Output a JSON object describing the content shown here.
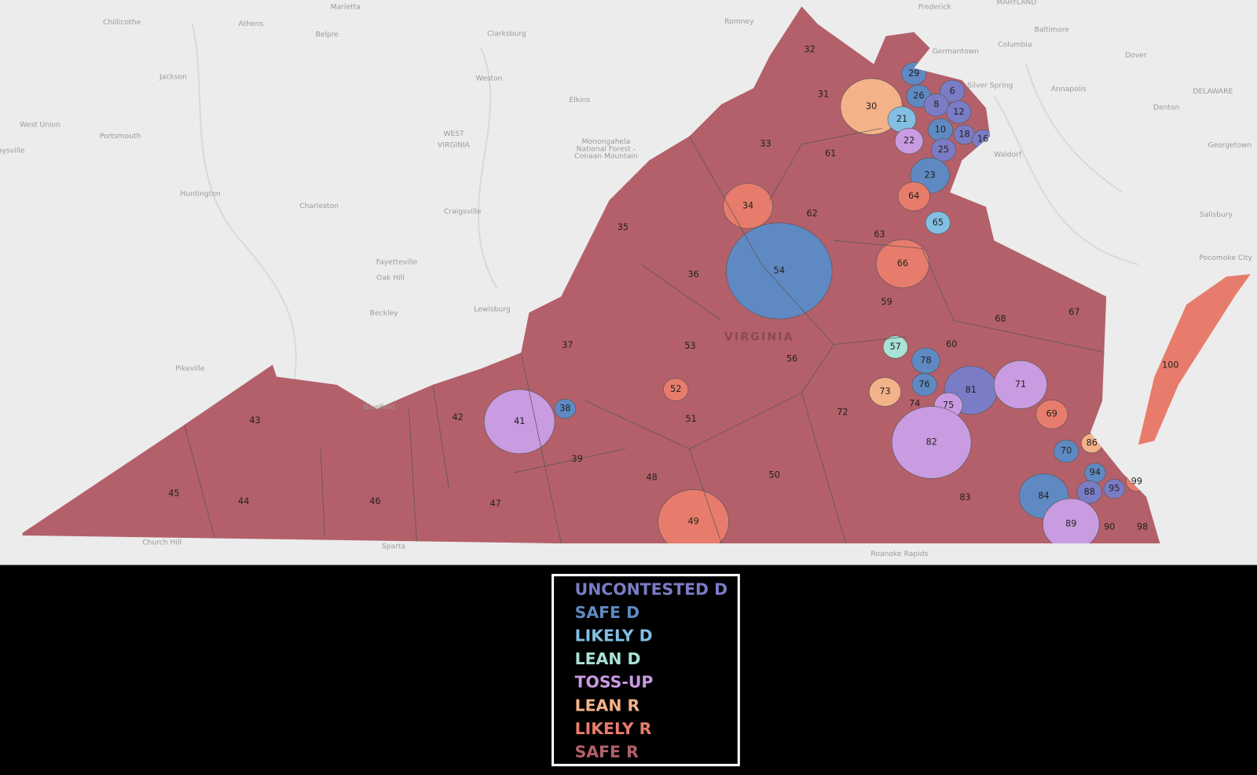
{
  "map": {
    "state_label": "VIRGINIA",
    "places": [
      "Chillicothe",
      "Athens",
      "Marietta",
      "Belpre",
      "Clarksburg",
      "Frederick",
      "MARYLAND",
      "Baltimore",
      "Germantown",
      "Columbia",
      "Romney",
      "Jackson",
      "Weston",
      "Silver Spring",
      "Annapolis",
      "Dover",
      "DELAWARE",
      "West Union",
      "Portsmouth",
      "Elkins",
      "WEST",
      "VIRGINIA",
      "Monongahela",
      "National Forest -",
      "Conaan Mountain",
      "Denton",
      "Waldorf",
      "Georgetown",
      "aysville",
      "Huntington",
      "Charleston",
      "Craigsville",
      "Salisbury",
      "Fayetteville",
      "Oak Hill",
      "Pocomoke City",
      "Beckley",
      "Lewisburg",
      "Pikeville",
      "Bluefield",
      "Church Hill",
      "Sparta",
      "Roanoke Rapids"
    ],
    "districts": [
      {
        "label": "32",
        "rating": "SAFE R"
      },
      {
        "label": "31",
        "rating": "SAFE R"
      },
      {
        "label": "30",
        "rating": "LEAN R"
      },
      {
        "label": "29",
        "rating": "SAFE D"
      },
      {
        "label": "26",
        "rating": "SAFE D"
      },
      {
        "label": "6",
        "rating": "UNCONTESTED D"
      },
      {
        "label": "8",
        "rating": "UNCONTESTED D"
      },
      {
        "label": "12",
        "rating": "UNCONTESTED D"
      },
      {
        "label": "21",
        "rating": "LIKELY D"
      },
      {
        "label": "10",
        "rating": "SAFE D"
      },
      {
        "label": "18",
        "rating": "UNCONTESTED D"
      },
      {
        "label": "16",
        "rating": "UNCONTESTED D"
      },
      {
        "label": "22",
        "rating": "TOSS-UP"
      },
      {
        "label": "25",
        "rating": "UNCONTESTED D"
      },
      {
        "label": "23",
        "rating": "SAFE D"
      },
      {
        "label": "33",
        "rating": "SAFE R"
      },
      {
        "label": "61",
        "rating": "SAFE R"
      },
      {
        "label": "64",
        "rating": "LIKELY R"
      },
      {
        "label": "65",
        "rating": "LIKELY D"
      },
      {
        "label": "34",
        "rating": "LIKELY R"
      },
      {
        "label": "62",
        "rating": "SAFE R"
      },
      {
        "label": "63",
        "rating": "SAFE R"
      },
      {
        "label": "35",
        "rating": "SAFE R"
      },
      {
        "label": "66",
        "rating": "LIKELY R"
      },
      {
        "label": "36",
        "rating": "SAFE R"
      },
      {
        "label": "54",
        "rating": "SAFE D"
      },
      {
        "label": "59",
        "rating": "SAFE R"
      },
      {
        "label": "67",
        "rating": "SAFE R"
      },
      {
        "label": "68",
        "rating": "SAFE R"
      },
      {
        "label": "100",
        "rating": "LIKELY R"
      },
      {
        "label": "37",
        "rating": "SAFE R"
      },
      {
        "label": "53",
        "rating": "SAFE R"
      },
      {
        "label": "56",
        "rating": "SAFE R"
      },
      {
        "label": "57",
        "rating": "LEAN D"
      },
      {
        "label": "60",
        "rating": "SAFE R"
      },
      {
        "label": "78",
        "rating": "SAFE D"
      },
      {
        "label": "76",
        "rating": "SAFE D"
      },
      {
        "label": "81",
        "rating": "UNCONTESTED D"
      },
      {
        "label": "71",
        "rating": "TOSS-UP"
      },
      {
        "label": "73",
        "rating": "LEAN R"
      },
      {
        "label": "74",
        "rating": "SAFE R"
      },
      {
        "label": "75",
        "rating": "TOSS-UP"
      },
      {
        "label": "52",
        "rating": "LIKELY R"
      },
      {
        "label": "72",
        "rating": "SAFE R"
      },
      {
        "label": "69",
        "rating": "LIKELY R"
      },
      {
        "label": "86",
        "rating": "LEAN R"
      },
      {
        "label": "43",
        "rating": "SAFE R"
      },
      {
        "label": "42",
        "rating": "SAFE R"
      },
      {
        "label": "41",
        "rating": "TOSS-UP"
      },
      {
        "label": "38",
        "rating": "SAFE D"
      },
      {
        "label": "51",
        "rating": "SAFE R"
      },
      {
        "label": "82",
        "rating": "TOSS-UP"
      },
      {
        "label": "70",
        "rating": "SAFE D"
      },
      {
        "label": "39",
        "rating": "SAFE R"
      },
      {
        "label": "48",
        "rating": "SAFE R"
      },
      {
        "label": "50",
        "rating": "SAFE R"
      },
      {
        "label": "94",
        "rating": "SAFE D"
      },
      {
        "label": "95",
        "rating": "UNCONTESTED D"
      },
      {
        "label": "99",
        "rating": "LIKELY R"
      },
      {
        "label": "45",
        "rating": "SAFE R"
      },
      {
        "label": "44",
        "rating": "SAFE R"
      },
      {
        "label": "46",
        "rating": "SAFE R"
      },
      {
        "label": "47",
        "rating": "SAFE R"
      },
      {
        "label": "49",
        "rating": "LIKELY R"
      },
      {
        "label": "83",
        "rating": "SAFE R"
      },
      {
        "label": "84",
        "rating": "SAFE D"
      },
      {
        "label": "88",
        "rating": "UNCONTESTED D"
      },
      {
        "label": "89",
        "rating": "TOSS-UP"
      },
      {
        "label": "90",
        "rating": "SAFE R"
      },
      {
        "label": "98",
        "rating": "SAFE R"
      }
    ]
  },
  "legend": {
    "items": [
      {
        "label": "UNCONTESTED D",
        "color": "#7b7cc6"
      },
      {
        "label": "SAFE D",
        "color": "#5f89c2"
      },
      {
        "label": "LIKELY D",
        "color": "#82bfe3"
      },
      {
        "label": "LEAN D",
        "color": "#a9e2d6"
      },
      {
        "label": "TOSS-UP",
        "color": "#c99be0"
      },
      {
        "label": "LEAN R",
        "color": "#f4b289"
      },
      {
        "label": "LIKELY R",
        "color": "#e87c6c"
      },
      {
        "label": "SAFE R",
        "color": "#b3606a"
      }
    ]
  }
}
